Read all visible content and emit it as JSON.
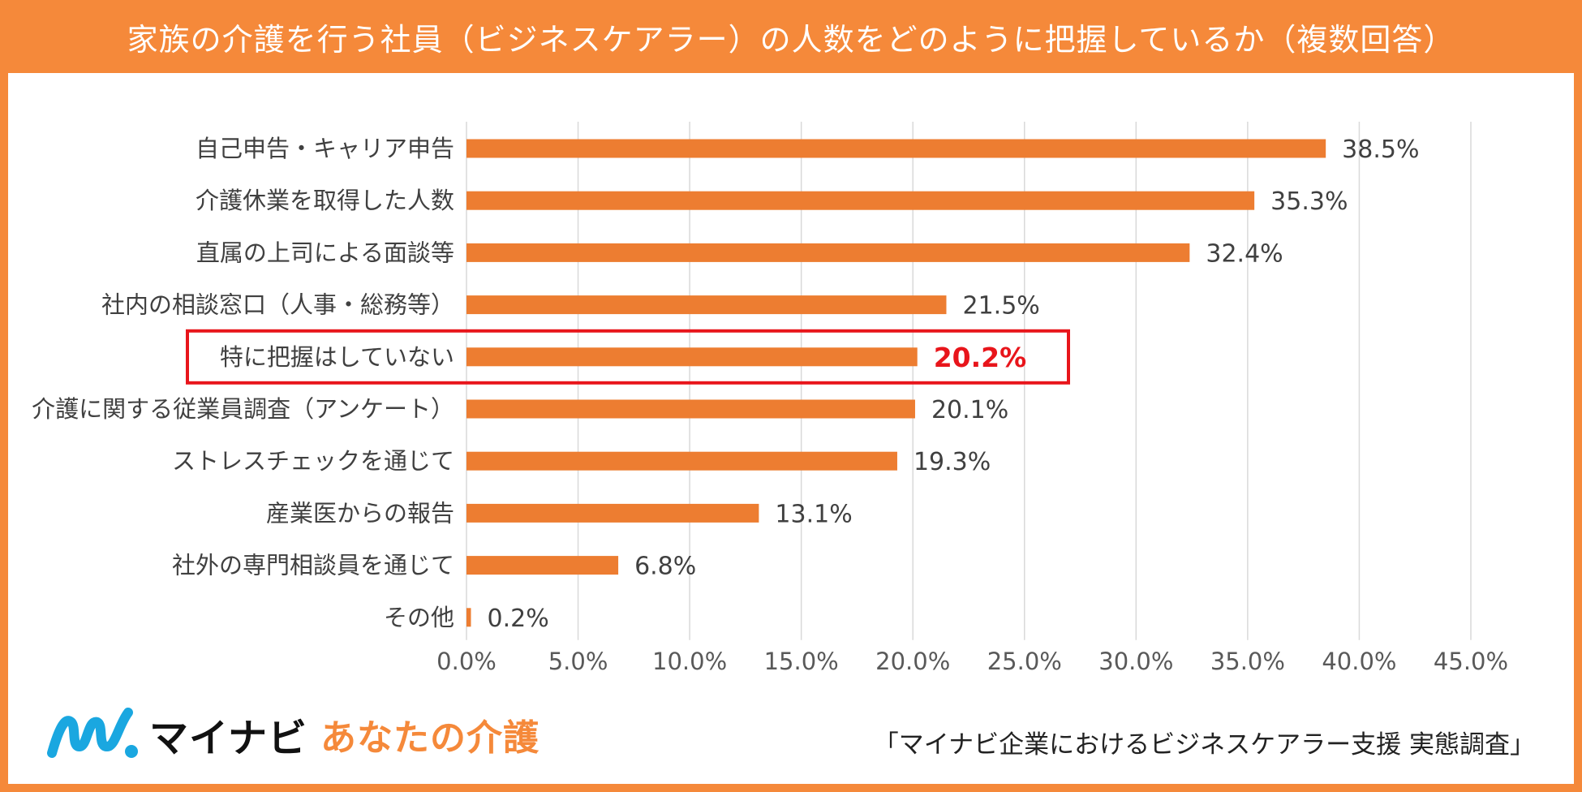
{
  "header": {
    "title": "家族の介護を行う社員（ビジネスケアラー）の人数をどのように把握しているか（複数回答）"
  },
  "colors": {
    "frame": "#f5893a",
    "bar": "#ed7d31",
    "highlight": "#e8151b",
    "grid": "#d9d9d9"
  },
  "chart_data": {
    "type": "bar",
    "orientation": "horizontal",
    "categories": [
      "自己申告・キャリア申告",
      "介護休業を取得した人数",
      "直属の上司による面談等",
      "社内の相談窓口（人事・総務等）",
      "特に把握はしていない",
      "介護に関する従業員調査（アンケート）",
      "ストレスチェックを通じて",
      "産業医からの報告",
      "社外の専門相談員を通じて",
      "その他"
    ],
    "values": [
      38.5,
      35.3,
      32.4,
      21.5,
      20.2,
      20.1,
      19.3,
      13.1,
      6.8,
      0.2
    ],
    "value_labels": [
      "38.5%",
      "35.3%",
      "32.4%",
      "21.5%",
      "20.2%",
      "20.1%",
      "19.3%",
      "13.1%",
      "6.8%",
      "0.2%"
    ],
    "highlighted_index": 4,
    "x_ticks": [
      "0.0%",
      "5.0%",
      "10.0%",
      "15.0%",
      "20.0%",
      "25.0%",
      "30.0%",
      "35.0%",
      "40.0%",
      "45.0%"
    ],
    "xlim": [
      0,
      45
    ],
    "grid": true,
    "legend": "none"
  },
  "footer": {
    "logo_name": "マイナビ",
    "logo_sub": "あなたの介護",
    "logo_icon": "mynavi-logo-icon",
    "source": "「マイナビ企業におけるビジネスケアラー支援 実態調査」"
  }
}
